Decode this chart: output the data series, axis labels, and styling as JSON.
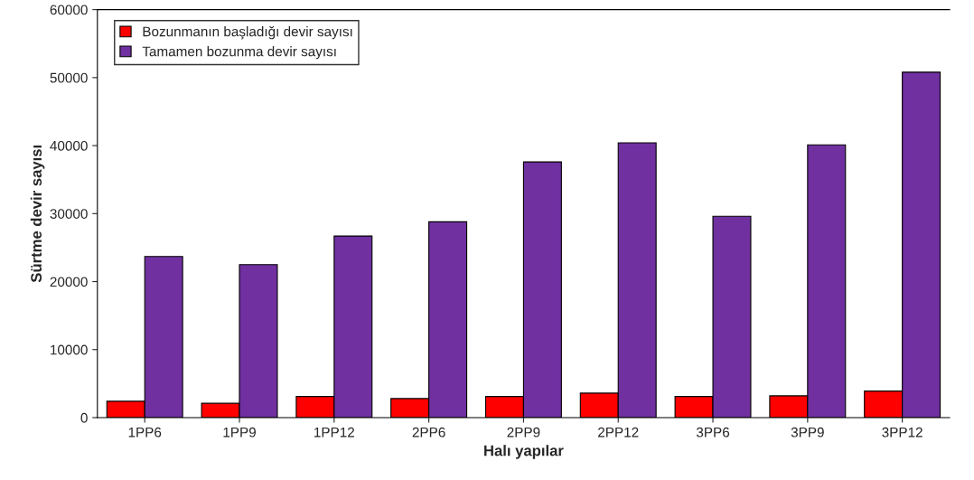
{
  "chart_data": {
    "type": "bar",
    "xlabel": "Halı yapılar",
    "ylabel": "Sürtme devir sayısı",
    "categories": [
      "1PP6",
      "1PP9",
      "1PP12",
      "2PP6",
      "2PP9",
      "2PP12",
      "3PP6",
      "3PP9",
      "3PP12"
    ],
    "series": [
      {
        "name": "Bozunmanın başladığı devir sayısı",
        "color": "#ff0000",
        "values": [
          2400,
          2100,
          3100,
          2800,
          3100,
          3600,
          3100,
          3200,
          3900
        ]
      },
      {
        "name": "Tamamen bozunma devir sayısı",
        "color": "#7030a0",
        "values": [
          23700,
          22500,
          26700,
          28800,
          37600,
          40400,
          29600,
          40100,
          50800
        ]
      }
    ],
    "ylim": [
      0,
      60000
    ],
    "yticks": [
      0,
      10000,
      20000,
      30000,
      40000,
      50000,
      60000
    ],
    "grid": false,
    "legend": "top left"
  }
}
